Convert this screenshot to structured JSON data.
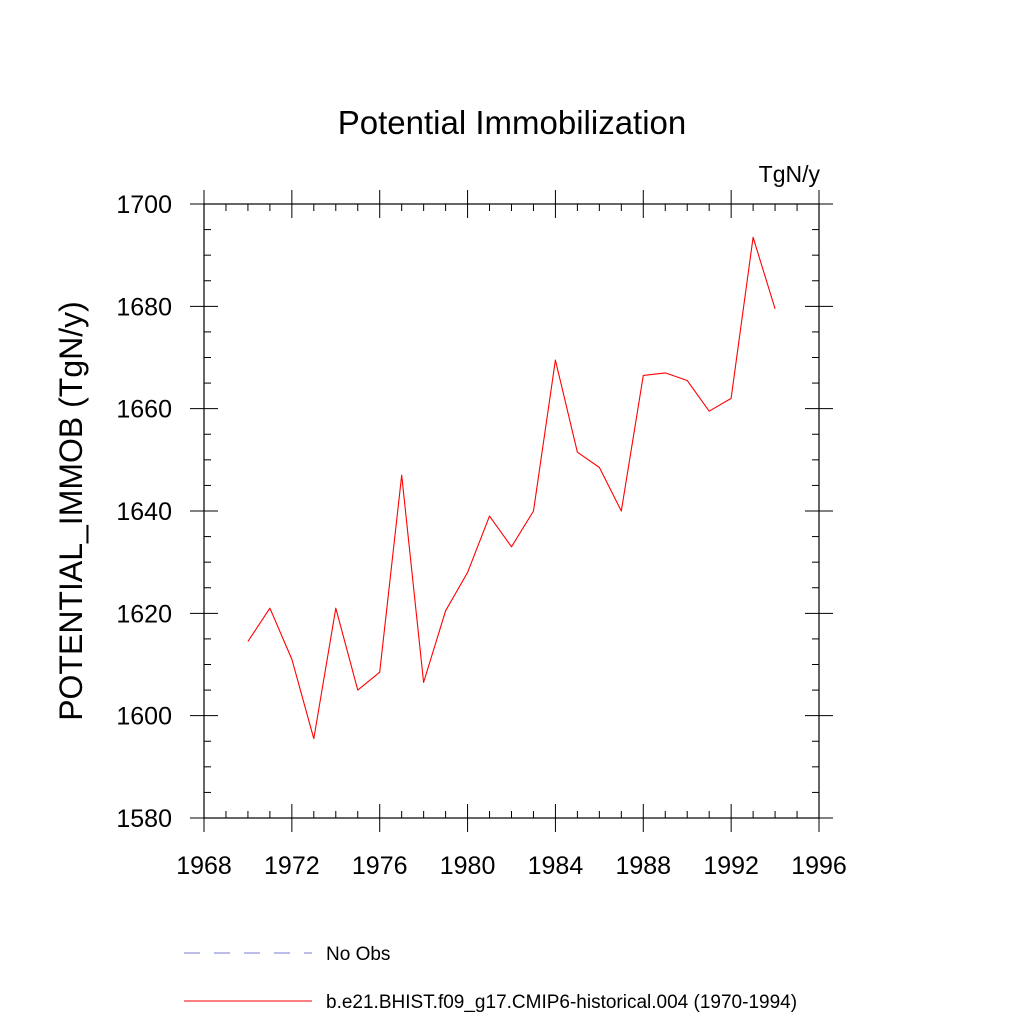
{
  "chart_data": {
    "type": "line",
    "title": "Potential Immobilization",
    "units_label": "TgN/y",
    "ylabel": "POTENTIAL_IMMOB  (TgN/y)",
    "xlabel": "",
    "xlim": [
      1968,
      1996
    ],
    "ylim": [
      1580,
      1700
    ],
    "x_ticks": [
      1968,
      1972,
      1976,
      1980,
      1984,
      1988,
      1992,
      1996
    ],
    "y_ticks": [
      1580,
      1600,
      1620,
      1640,
      1660,
      1680,
      1700
    ],
    "x_minor_step": 1,
    "y_minor_step": 5,
    "series": [
      {
        "name": "b.e21.BHIST.f09_g17.CMIP6-historical.004 (1970-1994)",
        "color": "#ff0000",
        "style": "solid",
        "x": [
          1970,
          1971,
          1972,
          1973,
          1974,
          1975,
          1976,
          1977,
          1978,
          1979,
          1980,
          1981,
          1982,
          1983,
          1984,
          1985,
          1986,
          1987,
          1988,
          1989,
          1990,
          1991,
          1992,
          1993,
          1994
        ],
        "values": [
          1614.5,
          1621.0,
          1611.0,
          1595.5,
          1621.0,
          1605.0,
          1608.5,
          1647.0,
          1606.5,
          1620.5,
          1628.0,
          1639.0,
          1633.0,
          1640.0,
          1669.5,
          1651.5,
          1648.5,
          1640.0,
          1666.5,
          1667.0,
          1665.5,
          1659.5,
          1662.0,
          1693.5,
          1679.5
        ]
      }
    ],
    "legend": [
      {
        "label": "No Obs",
        "color": "#7b7bd4",
        "style": "dashed"
      },
      {
        "label": "b.e21.BHIST.f09_g17.CMIP6-historical.004 (1970-1994)",
        "color": "#ff0000",
        "style": "solid"
      }
    ],
    "legend_position": "bottom"
  }
}
